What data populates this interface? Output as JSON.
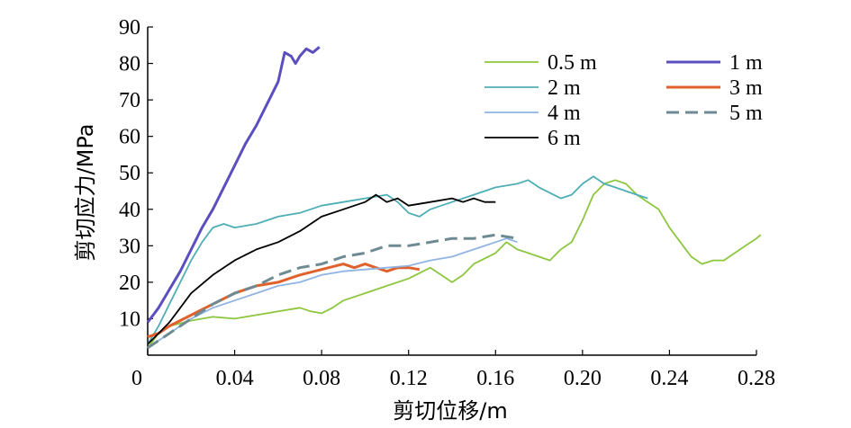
{
  "chart_data": {
    "type": "line",
    "xlabel": "剪切位移/m",
    "ylabel": "剪切应力/MPa",
    "xlim": [
      0,
      0.28
    ],
    "ylim": [
      0,
      90
    ],
    "x_ticks": [
      "0",
      "0.04",
      "0.08",
      "0.12",
      "0.16",
      "0.20",
      "0.24",
      "0.28"
    ],
    "y_ticks": [
      "10",
      "20",
      "30",
      "40",
      "50",
      "60",
      "70",
      "80",
      "90"
    ],
    "grid": false,
    "legend_position": "top-right",
    "series": [
      {
        "name": "0.5 m",
        "color": "#8dc63f",
        "dash": "solid",
        "points": [
          [
            0,
            2
          ],
          [
            0.005,
            6
          ],
          [
            0.01,
            8
          ],
          [
            0.02,
            9.5
          ],
          [
            0.03,
            10.5
          ],
          [
            0.04,
            10
          ],
          [
            0.05,
            11
          ],
          [
            0.06,
            12
          ],
          [
            0.07,
            13
          ],
          [
            0.075,
            12
          ],
          [
            0.08,
            11.5
          ],
          [
            0.085,
            13
          ],
          [
            0.09,
            15
          ],
          [
            0.1,
            17
          ],
          [
            0.11,
            19
          ],
          [
            0.12,
            21
          ],
          [
            0.13,
            24
          ],
          [
            0.135,
            22
          ],
          [
            0.14,
            20
          ],
          [
            0.145,
            22
          ],
          [
            0.15,
            25
          ],
          [
            0.16,
            28
          ],
          [
            0.165,
            31
          ],
          [
            0.17,
            29
          ],
          [
            0.175,
            28
          ],
          [
            0.18,
            27
          ],
          [
            0.185,
            26
          ],
          [
            0.19,
            29
          ],
          [
            0.195,
            31
          ],
          [
            0.2,
            37
          ],
          [
            0.205,
            44
          ],
          [
            0.21,
            47
          ],
          [
            0.215,
            48
          ],
          [
            0.22,
            47
          ],
          [
            0.225,
            44
          ],
          [
            0.23,
            42
          ],
          [
            0.235,
            40
          ],
          [
            0.24,
            35
          ],
          [
            0.245,
            31
          ],
          [
            0.25,
            27
          ],
          [
            0.255,
            25
          ],
          [
            0.26,
            26
          ],
          [
            0.265,
            26
          ],
          [
            0.27,
            28
          ],
          [
            0.275,
            30
          ],
          [
            0.28,
            32
          ],
          [
            0.282,
            33
          ]
        ]
      },
      {
        "name": "1 m",
        "color": "#5b4fbf",
        "dash": "solid",
        "points": [
          [
            0,
            9
          ],
          [
            0.005,
            13
          ],
          [
            0.01,
            18
          ],
          [
            0.015,
            23
          ],
          [
            0.02,
            29
          ],
          [
            0.025,
            35
          ],
          [
            0.03,
            40
          ],
          [
            0.035,
            46
          ],
          [
            0.04,
            52
          ],
          [
            0.045,
            58
          ],
          [
            0.05,
            63
          ],
          [
            0.055,
            69
          ],
          [
            0.06,
            75
          ],
          [
            0.063,
            83
          ],
          [
            0.066,
            82
          ],
          [
            0.068,
            80
          ],
          [
            0.07,
            82
          ],
          [
            0.073,
            84
          ],
          [
            0.076,
            83
          ],
          [
            0.079,
            84.5
          ]
        ]
      },
      {
        "name": "2 m",
        "color": "#4eaeb5",
        "dash": "solid",
        "points": [
          [
            0,
            3
          ],
          [
            0.005,
            8
          ],
          [
            0.01,
            14
          ],
          [
            0.015,
            20
          ],
          [
            0.02,
            26
          ],
          [
            0.025,
            31
          ],
          [
            0.03,
            35
          ],
          [
            0.035,
            36
          ],
          [
            0.04,
            35
          ],
          [
            0.05,
            36
          ],
          [
            0.06,
            38
          ],
          [
            0.07,
            39
          ],
          [
            0.08,
            41
          ],
          [
            0.09,
            42
          ],
          [
            0.1,
            43
          ],
          [
            0.11,
            44
          ],
          [
            0.115,
            42
          ],
          [
            0.12,
            39
          ],
          [
            0.125,
            38
          ],
          [
            0.13,
            40
          ],
          [
            0.14,
            42
          ],
          [
            0.15,
            44
          ],
          [
            0.16,
            46
          ],
          [
            0.17,
            47
          ],
          [
            0.175,
            48
          ],
          [
            0.18,
            46
          ],
          [
            0.19,
            43
          ],
          [
            0.195,
            44
          ],
          [
            0.2,
            47
          ],
          [
            0.205,
            49
          ],
          [
            0.21,
            47
          ],
          [
            0.215,
            46
          ],
          [
            0.22,
            45
          ],
          [
            0.225,
            44
          ],
          [
            0.23,
            43
          ]
        ]
      },
      {
        "name": "3 m",
        "color": "#e0612b",
        "dash": "solid",
        "points": [
          [
            0,
            5
          ],
          [
            0.005,
            6
          ],
          [
            0.01,
            8
          ],
          [
            0.02,
            11
          ],
          [
            0.03,
            14
          ],
          [
            0.04,
            17
          ],
          [
            0.05,
            19
          ],
          [
            0.06,
            20
          ],
          [
            0.065,
            21
          ],
          [
            0.07,
            22
          ],
          [
            0.08,
            23.5
          ],
          [
            0.09,
            25
          ],
          [
            0.095,
            24
          ],
          [
            0.1,
            25
          ],
          [
            0.105,
            24
          ],
          [
            0.11,
            23
          ],
          [
            0.115,
            24
          ],
          [
            0.12,
            24
          ],
          [
            0.125,
            23.5
          ]
        ]
      },
      {
        "name": "4 m",
        "color": "#8fb4e3",
        "dash": "solid",
        "points": [
          [
            0,
            2
          ],
          [
            0.01,
            6
          ],
          [
            0.02,
            10
          ],
          [
            0.03,
            13
          ],
          [
            0.04,
            15
          ],
          [
            0.05,
            17
          ],
          [
            0.06,
            19
          ],
          [
            0.07,
            20
          ],
          [
            0.08,
            22
          ],
          [
            0.09,
            23
          ],
          [
            0.1,
            23.5
          ],
          [
            0.11,
            24
          ],
          [
            0.12,
            24.5
          ],
          [
            0.13,
            26
          ],
          [
            0.14,
            27
          ],
          [
            0.15,
            29
          ],
          [
            0.16,
            31
          ],
          [
            0.165,
            32
          ],
          [
            0.17,
            31
          ]
        ]
      },
      {
        "name": "5 m",
        "color": "#6e8a93",
        "dash": "dashed",
        "points": [
          [
            0,
            2
          ],
          [
            0.005,
            4
          ],
          [
            0.01,
            6
          ],
          [
            0.02,
            10
          ],
          [
            0.03,
            14
          ],
          [
            0.04,
            17
          ],
          [
            0.05,
            19
          ],
          [
            0.06,
            22
          ],
          [
            0.07,
            24
          ],
          [
            0.08,
            25
          ],
          [
            0.09,
            27
          ],
          [
            0.1,
            28
          ],
          [
            0.11,
            30
          ],
          [
            0.12,
            30
          ],
          [
            0.13,
            31
          ],
          [
            0.14,
            32
          ],
          [
            0.15,
            32
          ],
          [
            0.16,
            33
          ],
          [
            0.17,
            32
          ]
        ]
      },
      {
        "name": "6 m",
        "color": "#000000",
        "dash": "solid",
        "points": [
          [
            0,
            3
          ],
          [
            0.005,
            6
          ],
          [
            0.01,
            9
          ],
          [
            0.015,
            13
          ],
          [
            0.02,
            17
          ],
          [
            0.03,
            22
          ],
          [
            0.04,
            26
          ],
          [
            0.05,
            29
          ],
          [
            0.06,
            31
          ],
          [
            0.07,
            34
          ],
          [
            0.08,
            38
          ],
          [
            0.09,
            40
          ],
          [
            0.1,
            42
          ],
          [
            0.105,
            44
          ],
          [
            0.11,
            42
          ],
          [
            0.115,
            43
          ],
          [
            0.12,
            41
          ],
          [
            0.13,
            42
          ],
          [
            0.14,
            43
          ],
          [
            0.145,
            42
          ],
          [
            0.15,
            43
          ],
          [
            0.155,
            42
          ],
          [
            0.16,
            42
          ]
        ]
      }
    ]
  }
}
